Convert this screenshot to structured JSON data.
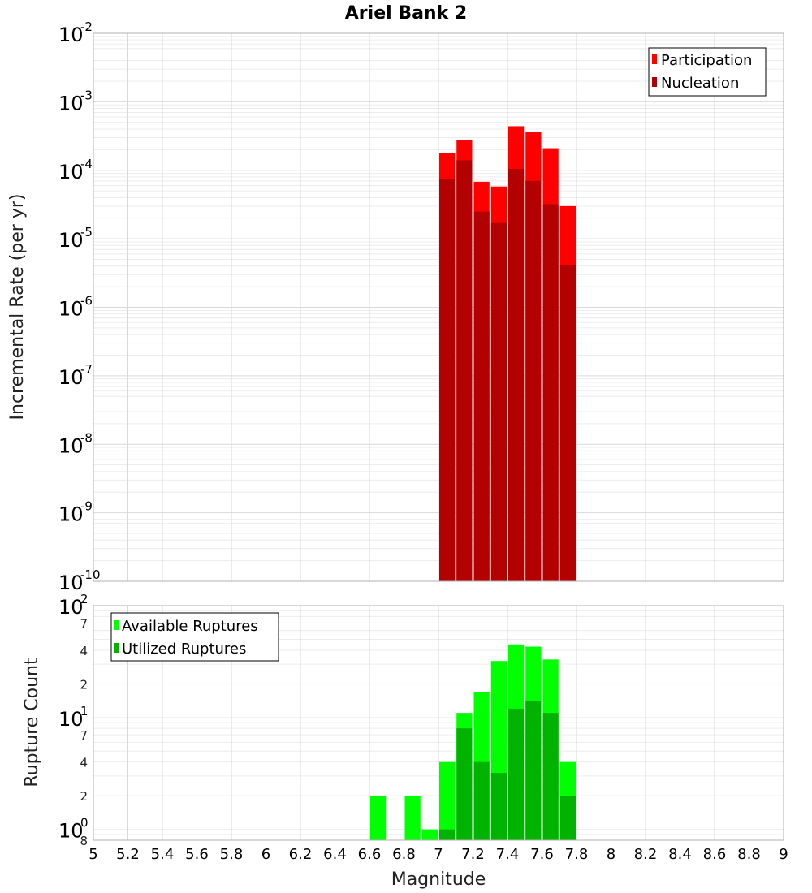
{
  "chart_data": [
    {
      "type": "bar",
      "title": "Ariel Bank 2",
      "xlabel": "Magnitude",
      "ylabel": "Incremental Rate (per yr)",
      "yscale": "log",
      "xlim": [
        5,
        9
      ],
      "ylim": [
        1e-10,
        0.01
      ],
      "x_ticks": [
        "5",
        "5.2",
        "5.4",
        "5.6",
        "5.8",
        "6",
        "6.2",
        "6.4",
        "6.6",
        "6.8",
        "7",
        "7.2",
        "7.4",
        "7.6",
        "7.8",
        "8",
        "8.2",
        "8.4",
        "8.6",
        "8.8",
        "9"
      ],
      "y_tick_exponents": [
        "-10",
        "-9",
        "-8",
        "-7",
        "-6",
        "-5",
        "-4",
        "-3",
        "-2"
      ],
      "y_tick_base": "10",
      "legend_position": "top-right",
      "grid": true,
      "bin_width": 0.1,
      "x": [
        7.05,
        7.15,
        7.25,
        7.35,
        7.45,
        7.55,
        7.65,
        7.75
      ],
      "series": [
        {
          "name": "Participation",
          "color": "#ff0000",
          "values": [
            0.00018,
            0.00028,
            6.8e-05,
            5.8e-05,
            0.00044,
            0.00036,
            0.00021,
            3e-05
          ]
        },
        {
          "name": "Nucleation",
          "color": "#b30000",
          "values": [
            7.5e-05,
            0.00014,
            2.5e-05,
            1.7e-05,
            0.000105,
            7e-05,
            3.2e-05,
            4.2e-06
          ]
        }
      ]
    },
    {
      "type": "bar",
      "xlabel": "Magnitude",
      "ylabel": "Rupture Count",
      "yscale": "log",
      "xlim": [
        5,
        9
      ],
      "ylim": [
        0.8,
        100
      ],
      "y_major_exponents": [
        "0",
        "1",
        "2"
      ],
      "y_tick_base": "10",
      "y_minor_labels": [
        "8",
        "2",
        "4",
        "7",
        "2",
        "4",
        "7"
      ],
      "legend_position": "top-left",
      "grid": true,
      "bin_width": 0.1,
      "x": [
        6.65,
        6.85,
        6.95,
        7.05,
        7.15,
        7.25,
        7.35,
        7.45,
        7.55,
        7.65,
        7.75
      ],
      "series": [
        {
          "name": "Available Ruptures",
          "color": "#00ff00",
          "values": [
            2,
            2,
            1,
            4,
            11,
            17,
            32,
            45,
            43,
            33,
            4
          ]
        },
        {
          "name": "Utilized Ruptures",
          "color": "#00b300",
          "values": [
            0,
            0,
            0,
            1,
            8,
            4,
            3.2,
            12,
            14,
            11,
            2
          ]
        }
      ]
    }
  ]
}
